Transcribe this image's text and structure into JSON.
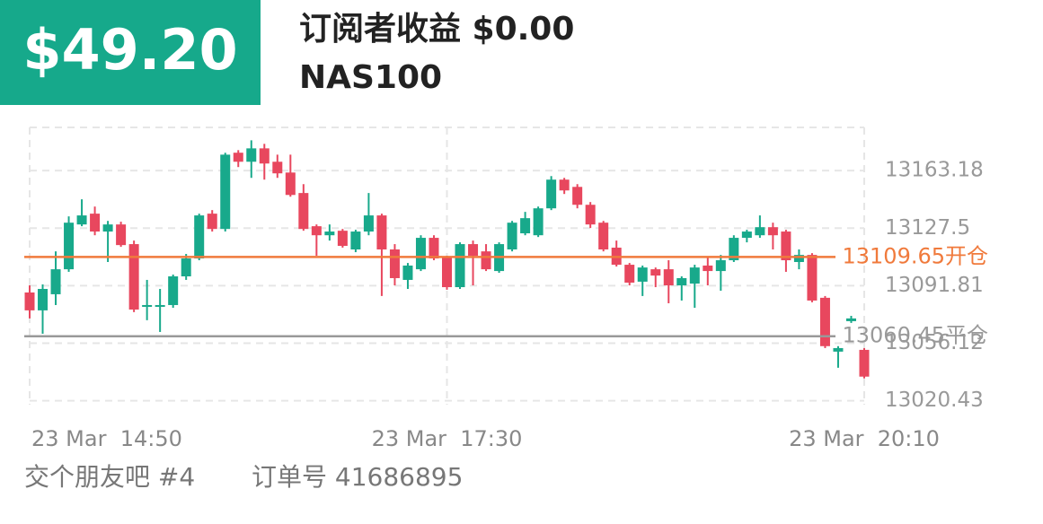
{
  "header": {
    "profit": "$49.20",
    "subscriber_profit": "订阅者收益 $0.00",
    "symbol": "NAS100"
  },
  "footer": {
    "group": "交个朋友吧 #4",
    "order": "订单号 41686895"
  },
  "chart_data": {
    "type": "candlestick",
    "up_color": "#18a98b",
    "down_color": "#e8475e",
    "open": [
      13087.6,
      13076.5,
      13086.5,
      13102.0,
      13129.8,
      13136.5,
      13125.4,
      13129.8,
      13117.6,
      13078.7,
      13078.7,
      13079.8,
      13097.6,
      13108.7,
      13136.5,
      13127.0,
      13174.3,
      13168.7,
      13177.0,
      13168.7,
      13162.0,
      13149.3,
      13128.7,
      13123.1,
      13125.9,
      13114.3,
      13125.4,
      13135.4,
      13114.3,
      13095.4,
      13102.0,
      13121.5,
      13109.3,
      13090.9,
      13117.6,
      13113.1,
      13100.9,
      13114.3,
      13124.3,
      13123.1,
      13139.8,
      13157.6,
      13153.1,
      13142.0,
      13130.9,
      13115.4,
      13104.8,
      13094.3,
      13102.0,
      13102.0,
      13092.0,
      13093.1,
      13104.3,
      13100.9,
      13107.6,
      13121.5,
      13123.1,
      13128.1,
      13125.4,
      13106.5,
      13110.9,
      13084.3,
      13050.9,
      13069.8,
      13052.0
    ],
    "high": [
      13092.0,
      13092.6,
      13113.1,
      13134.8,
      13145.4,
      13140.9,
      13132.0,
      13131.5,
      13119.8,
      13095.4,
      13089.8,
      13098.7,
      13111.5,
      13136.5,
      13138.7,
      13174.3,
      13175.9,
      13182.0,
      13179.8,
      13173.1,
      13173.1,
      13154.8,
      13129.8,
      13129.8,
      13127.0,
      13126.5,
      13149.3,
      13136.5,
      13117.6,
      13105.9,
      13123.1,
      13123.1,
      13110.4,
      13118.7,
      13119.8,
      13117.6,
      13118.7,
      13132.0,
      13137.6,
      13140.9,
      13159.8,
      13158.7,
      13154.8,
      13143.7,
      13132.0,
      13119.8,
      13105.9,
      13104.3,
      13103.1,
      13107.6,
      13097.6,
      13104.8,
      13109.8,
      13110.9,
      13123.1,
      13126.5,
      13135.4,
      13130.9,
      13126.5,
      13114.3,
      13112.0,
      13085.4,
      13054.3,
      13073.1,
      13053.1
    ],
    "low": [
      13071.5,
      13062.0,
      13079.8,
      13100.4,
      13128.7,
      13123.1,
      13106.5,
      13115.9,
      13075.4,
      13070.4,
      13063.1,
      13078.1,
      13095.4,
      13107.6,
      13125.4,
      13125.4,
      13165.4,
      13158.7,
      13157.6,
      13158.7,
      13147.0,
      13125.9,
      13110.4,
      13119.8,
      13115.4,
      13112.6,
      13123.1,
      13085.4,
      13092.0,
      13089.8,
      13100.9,
      13107.6,
      13089.3,
      13089.8,
      13092.0,
      13100.9,
      13099.8,
      13113.1,
      13123.1,
      13122.0,
      13138.7,
      13148.7,
      13139.8,
      13127.6,
      13113.1,
      13103.7,
      13092.0,
      13085.4,
      13090.9,
      13080.9,
      13082.6,
      13078.1,
      13092.0,
      13088.7,
      13106.5,
      13118.7,
      13121.5,
      13114.3,
      13100.4,
      13102.0,
      13081.5,
      13053.1,
      13040.9,
      13068.7,
      13034.3
    ],
    "close": [
      13076.5,
      13089.8,
      13102.0,
      13130.9,
      13135.4,
      13125.4,
      13129.8,
      13117.0,
      13077.0,
      13079.8,
      13079.8,
      13097.6,
      13108.7,
      13135.4,
      13127.0,
      13173.1,
      13168.7,
      13177.0,
      13167.6,
      13161.5,
      13148.1,
      13127.0,
      13123.1,
      13125.4,
      13116.5,
      13125.4,
      13135.4,
      13114.3,
      13096.5,
      13104.3,
      13121.5,
      13108.7,
      13090.9,
      13117.6,
      13110.4,
      13102.0,
      13117.6,
      13130.9,
      13133.7,
      13139.8,
      13157.6,
      13150.9,
      13142.0,
      13129.8,
      13114.3,
      13104.8,
      13093.7,
      13103.1,
      13098.1,
      13092.0,
      13096.5,
      13103.1,
      13100.9,
      13107.6,
      13121.5,
      13125.4,
      13128.1,
      13123.1,
      13107.6,
      13110.9,
      13082.6,
      13054.3,
      13053.1,
      13071.5,
      13035.4
    ],
    "xlim": [
      0,
      64
    ],
    "xticks": [
      {
        "value": 0,
        "label": "23 Mar  14:50"
      },
      {
        "value": 32,
        "label": "23 Mar  17:30"
      },
      {
        "value": 64,
        "label": "23 Mar  20:10"
      }
    ],
    "ylim": [
      13018,
      13190
    ],
    "yticks": [
      13020.43,
      13056.12,
      13091.81,
      13127.5,
      13163.18
    ],
    "grid": true,
    "levels": [
      {
        "value": 13109.65,
        "label": "13109.65开仓",
        "color": "#f07a3c"
      },
      {
        "value": 13060.45,
        "label": "13060.45平仓",
        "color": "#999999"
      }
    ]
  }
}
